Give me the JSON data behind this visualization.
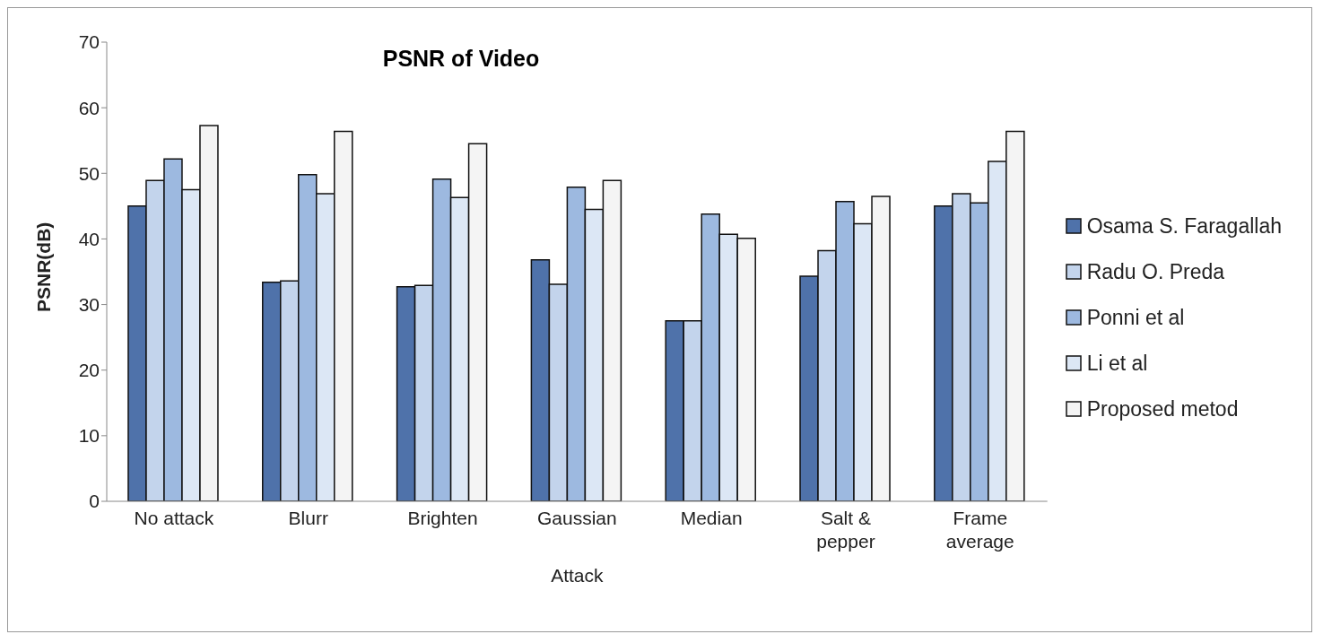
{
  "chart_data": {
    "type": "bar",
    "title": "PSNR of Video",
    "xlabel": "Attack",
    "ylabel": "PSNR(dB)",
    "categories": [
      "No attack",
      "Blurr",
      "Brighten",
      "Gaussian",
      "Median",
      "Salt & pepper",
      "Frame average"
    ],
    "series": [
      {
        "name": "Osama S. Faragallah",
        "color": "#4f72aa",
        "values": [
          45.0,
          33.4,
          32.7,
          36.8,
          27.5,
          34.3,
          45.0
        ]
      },
      {
        "name": "Radu O. Preda",
        "color": "#c3d4ec",
        "values": [
          48.9,
          33.6,
          32.9,
          33.1,
          27.5,
          38.2,
          46.9
        ]
      },
      {
        "name": "Ponni et al",
        "color": "#9db9e0",
        "values": [
          52.2,
          49.8,
          49.1,
          47.9,
          43.8,
          45.7,
          45.5
        ]
      },
      {
        "name": "Li et al",
        "color": "#dce7f5",
        "values": [
          47.5,
          46.9,
          46.3,
          44.5,
          40.7,
          42.3,
          51.8
        ]
      },
      {
        "name": "Proposed metod",
        "color": "#f4f4f4",
        "values": [
          57.3,
          56.4,
          54.5,
          48.9,
          40.1,
          46.5,
          56.4
        ]
      }
    ],
    "ylim": [
      0,
      70
    ],
    "yticks": [
      0,
      10,
      20,
      30,
      40,
      50,
      60,
      70
    ],
    "grid": false,
    "legend": "right"
  }
}
